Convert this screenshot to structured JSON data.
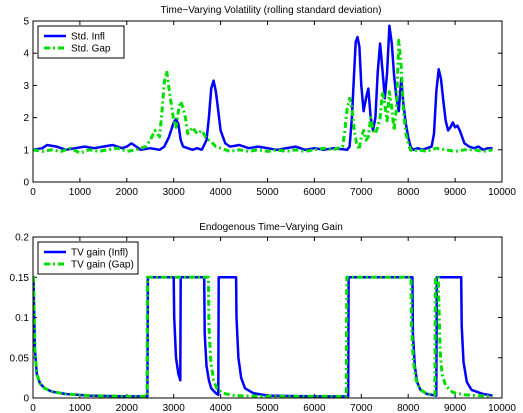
{
  "chart_data": [
    {
      "type": "line",
      "title": "Time−Varying Volatility (rolling standard deviation)",
      "xlim": [
        0,
        10000
      ],
      "ylim": [
        0,
        5
      ],
      "xticks": [
        0,
        1000,
        2000,
        3000,
        4000,
        5000,
        6000,
        7000,
        8000,
        9000,
        10000
      ],
      "yticks": [
        0,
        1,
        2,
        3,
        4,
        5
      ],
      "legend_position": "top-left",
      "series": [
        {
          "name": "Std. Infl",
          "color": "#0000ff",
          "style": "solid",
          "x": [
            0,
            200,
            300,
            500,
            700,
            900,
            1100,
            1300,
            1500,
            1700,
            1900,
            2000,
            2100,
            2300,
            2500,
            2700,
            2800,
            2900,
            3000,
            3050,
            3100,
            3150,
            3200,
            3300,
            3400,
            3500,
            3600,
            3700,
            3750,
            3800,
            3850,
            3900,
            3950,
            4000,
            4100,
            4200,
            4400,
            4600,
            4800,
            5000,
            5200,
            5400,
            5600,
            5800,
            6000,
            6200,
            6400,
            6700,
            6750,
            6800,
            6850,
            6880,
            6920,
            6960,
            7000,
            7050,
            7100,
            7150,
            7200,
            7250,
            7300,
            7350,
            7400,
            7450,
            7500,
            7550,
            7600,
            7650,
            7700,
            7750,
            7800,
            7850,
            7900,
            7950,
            8000,
            8050,
            8100,
            8200,
            8300,
            8400,
            8500,
            8550,
            8600,
            8650,
            8700,
            8750,
            8800,
            8850,
            8900,
            8950,
            9000,
            9050,
            9100,
            9150,
            9200,
            9300,
            9400,
            9500,
            9600,
            9700,
            9800
          ],
          "y": [
            1.0,
            1.05,
            1.15,
            1.1,
            1.0,
            1.05,
            1.1,
            1.05,
            1.1,
            1.15,
            1.05,
            1.1,
            1.2,
            1.0,
            1.05,
            1.0,
            1.1,
            1.4,
            1.85,
            1.95,
            1.8,
            1.3,
            1.1,
            1.05,
            1.0,
            1.05,
            1.0,
            1.3,
            2.0,
            2.9,
            3.15,
            2.8,
            2.2,
            1.6,
            1.2,
            1.1,
            1.15,
            1.05,
            1.1,
            1.05,
            1.0,
            1.05,
            1.1,
            1.0,
            1.05,
            1.0,
            1.05,
            1.0,
            1.1,
            2.0,
            3.5,
            4.35,
            4.5,
            4.2,
            3.0,
            2.2,
            2.6,
            2.9,
            2.0,
            1.6,
            2.0,
            3.4,
            4.3,
            3.5,
            2.6,
            3.4,
            4.85,
            4.3,
            3.3,
            2.6,
            2.2,
            3.2,
            2.4,
            1.8,
            1.4,
            1.1,
            1.0,
            1.05,
            1.0,
            1.05,
            1.1,
            1.5,
            2.8,
            3.5,
            3.2,
            2.5,
            1.9,
            1.6,
            1.7,
            1.85,
            1.7,
            1.75,
            1.6,
            1.4,
            1.2,
            1.1,
            1.05,
            1.1,
            1.0,
            1.05,
            1.05
          ]
        },
        {
          "name": "Std. Gap",
          "color": "#00dd00",
          "style": "dashdot",
          "x": [
            0,
            200,
            400,
            600,
            800,
            1000,
            1200,
            1400,
            1600,
            1800,
            2000,
            2200,
            2400,
            2500,
            2600,
            2700,
            2750,
            2800,
            2850,
            2900,
            2950,
            3000,
            3050,
            3100,
            3150,
            3200,
            3250,
            3300,
            3400,
            3500,
            3600,
            3700,
            3800,
            3900,
            4000,
            4200,
            4400,
            4600,
            4800,
            5000,
            5200,
            5400,
            5600,
            5800,
            6000,
            6200,
            6400,
            6600,
            6650,
            6700,
            6750,
            6800,
            6850,
            6900,
            6950,
            7000,
            7050,
            7100,
            7150,
            7200,
            7250,
            7300,
            7350,
            7400,
            7450,
            7500,
            7550,
            7600,
            7650,
            7700,
            7750,
            7800,
            7850,
            7900,
            7950,
            8000,
            8050,
            8100,
            8200,
            8400,
            8600,
            8800,
            9000,
            9200,
            9400,
            9600,
            9800
          ],
          "y": [
            1.0,
            0.95,
            1.0,
            0.95,
            1.05,
            0.9,
            1.0,
            0.95,
            1.0,
            1.05,
            0.95,
            1.0,
            1.1,
            1.3,
            1.6,
            1.4,
            2.2,
            3.1,
            3.45,
            2.9,
            2.4,
            1.9,
            1.7,
            2.2,
            2.5,
            2.3,
            2.0,
            1.5,
            1.7,
            1.5,
            1.6,
            1.35,
            1.25,
            1.1,
            1.05,
            0.95,
            1.0,
            0.95,
            1.0,
            0.95,
            1.0,
            0.95,
            1.0,
            0.95,
            1.0,
            1.05,
            1.0,
            1.1,
            1.6,
            2.3,
            2.6,
            2.3,
            1.6,
            1.2,
            1.0,
            1.4,
            1.6,
            1.3,
            1.4,
            2.0,
            1.6,
            1.5,
            1.7,
            2.0,
            2.8,
            2.4,
            1.9,
            2.8,
            2.3,
            1.6,
            2.3,
            4.4,
            3.6,
            2.2,
            1.5,
            1.2,
            1.0,
            0.95,
            1.0,
            0.95,
            1.05,
            1.0,
            0.95,
            1.0,
            1.0,
            0.95,
            1.0
          ]
        }
      ]
    },
    {
      "type": "line",
      "title": "Endogenous Time−Varying Gain",
      "xlim": [
        0,
        10000
      ],
      "ylim": [
        0,
        0.2
      ],
      "xticks": [
        0,
        1000,
        2000,
        3000,
        4000,
        5000,
        6000,
        7000,
        8000,
        9000,
        10000
      ],
      "yticks": [
        0,
        0.05,
        0.1,
        0.15,
        0.2
      ],
      "ytick_labels": [
        "0",
        "0.05",
        "0.1",
        "0.15",
        "0.2"
      ],
      "legend_position": "top-left",
      "series": [
        {
          "name": "TV gain (Infl)",
          "color": "#0000ff",
          "style": "solid",
          "x": [
            0,
            10,
            40,
            80,
            150,
            250,
            400,
            700,
            1200,
            2000,
            2440,
            2450,
            3000,
            3010,
            3050,
            3100,
            3140,
            3150,
            3650,
            3660,
            3700,
            3750,
            3800,
            3900,
            3950,
            3960,
            4330,
            4340,
            4380,
            4440,
            4520,
            4700,
            5000,
            6000,
            6720,
            6730,
            8090,
            8100,
            8140,
            8190,
            8260,
            8400,
            8600,
            8610,
            9130,
            9140,
            9180,
            9250,
            9350,
            9600,
            9800
          ],
          "y": [
            0.15,
            0.15,
            0.06,
            0.03,
            0.018,
            0.012,
            0.008,
            0.005,
            0.003,
            0.002,
            0.002,
            0.15,
            0.15,
            0.1,
            0.05,
            0.03,
            0.022,
            0.15,
            0.15,
            0.08,
            0.04,
            0.022,
            0.012,
            0.006,
            0.004,
            0.15,
            0.15,
            0.1,
            0.05,
            0.025,
            0.012,
            0.006,
            0.003,
            0.002,
            0.002,
            0.15,
            0.15,
            0.08,
            0.04,
            0.02,
            0.01,
            0.005,
            0.003,
            0.15,
            0.15,
            0.09,
            0.045,
            0.02,
            0.01,
            0.005,
            0.003
          ]
        },
        {
          "name": "TV gain (Gap)",
          "color": "#00dd00",
          "style": "dashdot",
          "x": [
            0,
            10,
            40,
            80,
            150,
            250,
            400,
            700,
            1200,
            2000,
            2430,
            2440,
            3740,
            3750,
            3790,
            3850,
            3920,
            4050,
            4300,
            5000,
            6000,
            6680,
            6690,
            8060,
            8070,
            8110,
            8170,
            8250,
            8400,
            8570,
            8580,
            8640,
            8680,
            8720,
            8800,
            8950,
            9200,
            9800
          ],
          "y": [
            0.15,
            0.15,
            0.06,
            0.03,
            0.018,
            0.012,
            0.008,
            0.005,
            0.003,
            0.002,
            0.002,
            0.15,
            0.15,
            0.09,
            0.045,
            0.022,
            0.012,
            0.006,
            0.003,
            0.002,
            0.002,
            0.002,
            0.15,
            0.15,
            0.09,
            0.045,
            0.022,
            0.011,
            0.005,
            0.004,
            0.15,
            0.15,
            0.06,
            0.03,
            0.015,
            0.007,
            0.004,
            0.002
          ]
        }
      ]
    }
  ]
}
